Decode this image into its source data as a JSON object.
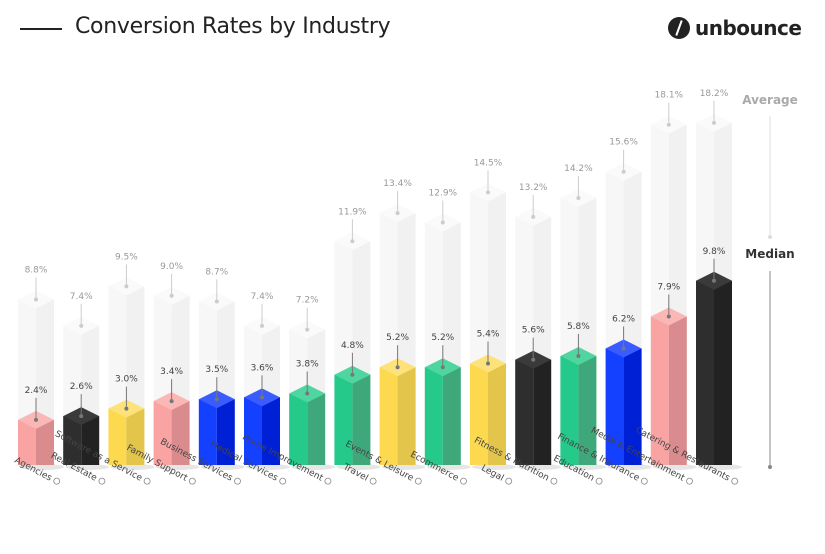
{
  "title": "Conversion Rates by Industry",
  "logo_text": "unbounce",
  "chart_data": {
    "type": "bar",
    "categories": [
      "Agencies",
      "Real Estate",
      "Software as a Service",
      "Family Support",
      "Business Services",
      "Medical Services",
      "Home Improvement",
      "Travel",
      "Events & Leisure",
      "Ecommerce",
      "Legal",
      "Fitness & Nutrition",
      "Education",
      "Finance & Insurance",
      "Media & Entertainment",
      "Catering & Restaurants"
    ],
    "series": [
      {
        "name": "Median",
        "values": [
          2.4,
          2.6,
          3.0,
          3.4,
          3.5,
          3.6,
          3.8,
          4.8,
          5.2,
          5.2,
          5.4,
          5.6,
          5.8,
          6.2,
          7.9,
          9.8
        ]
      },
      {
        "name": "Average",
        "values": [
          8.8,
          7.4,
          9.5,
          9.0,
          8.7,
          7.4,
          7.2,
          11.9,
          13.4,
          12.9,
          14.5,
          13.2,
          14.2,
          15.6,
          18.1,
          18.2
        ]
      }
    ],
    "median_labels": [
      "2.4%",
      "2.6%",
      "3.0%",
      "3.4%",
      "3.5%",
      "3.6%",
      "3.8%",
      "4.8%",
      "5.2%",
      "5.2%",
      "5.4%",
      "5.6%",
      "5.8%",
      "6.2%",
      "7.9%",
      "9.8%"
    ],
    "average_labels": [
      "8.8%",
      "7.4%",
      "9.5%",
      "9.0%",
      "8.7%",
      "7.4%",
      "7.2%",
      "11.9%",
      "13.4%",
      "12.9%",
      "14.5%",
      "13.2%",
      "14.2%",
      "15.6%",
      "18.1%",
      "18.2%"
    ],
    "bar_colors": [
      "pink",
      "black",
      "yellow",
      "pink",
      "blue",
      "blue",
      "green",
      "green",
      "yellow",
      "green",
      "yellow",
      "black",
      "green",
      "blue",
      "pink",
      "black"
    ],
    "palette": {
      "pink": [
        "#f9a3a3",
        "#d98b8e",
        "#fbb6b6"
      ],
      "black": [
        "#2e2e2e",
        "#222222",
        "#3a3a3a"
      ],
      "yellow": [
        "#fcd94f",
        "#e2c54a",
        "#fde27a"
      ],
      "blue": [
        "#1440ff",
        "#0020d6",
        "#3a5cff"
      ],
      "green": [
        "#25c98a",
        "#3fa87a",
        "#4fd6a0"
      ],
      "average": [
        "#f7f7f7",
        "#f1f1f1",
        "#fafafa"
      ]
    },
    "legend": {
      "average": "Average",
      "median": "Median",
      "placement": "right"
    },
    "unit": "%",
    "grid": false
  }
}
